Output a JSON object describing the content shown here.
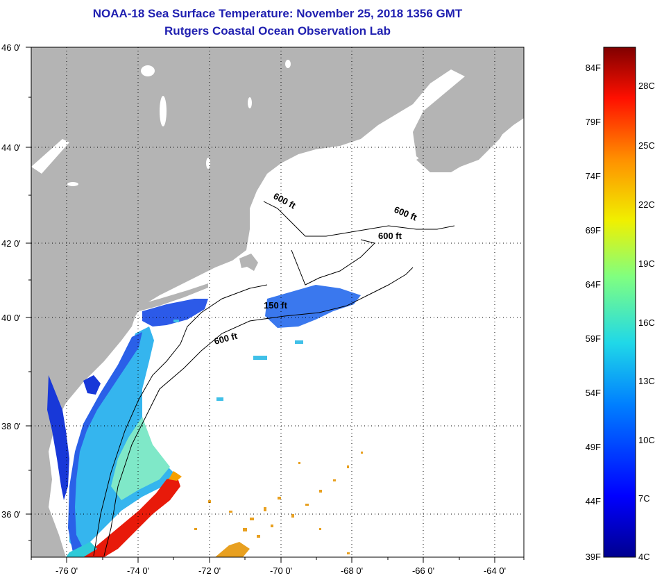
{
  "header": {
    "title": "NOAA-18 Sea Surface Temperature:  November 25, 2018 1356 GMT",
    "subtitle": "Rutgers Coastal Ocean Observation Lab"
  },
  "map": {
    "lon_range": [
      -77,
      -63
    ],
    "lat_range": [
      35,
      46
    ],
    "lon_ticks": [
      {
        "value": -76,
        "label": "-76 0'"
      },
      {
        "value": -74,
        "label": "-74 0'"
      },
      {
        "value": -72,
        "label": "-72 0'"
      },
      {
        "value": -70,
        "label": "-70 0'"
      },
      {
        "value": -68,
        "label": "-68 0'"
      },
      {
        "value": -66,
        "label": "-66 0'"
      },
      {
        "value": -64,
        "label": "-64 0'"
      }
    ],
    "lat_ticks": [
      {
        "value": 46,
        "label": "46 0'"
      },
      {
        "value": 44,
        "label": "44 0'"
      },
      {
        "value": 42,
        "label": "42 0'"
      },
      {
        "value": 40,
        "label": "40 0'"
      },
      {
        "value": 38,
        "label": "38 0'"
      },
      {
        "value": 36,
        "label": "36 0'"
      }
    ],
    "contour_labels": [
      "600 ft",
      "600 ft",
      "600 ft",
      "150 ft",
      "600 ft"
    ],
    "colors": {
      "land": "#b4b4b4",
      "ocean_nodata": "#ffffff",
      "cold": "#1a3fe0",
      "cool": "#2fb8f0",
      "mild": "#7ff0c0",
      "warm": "#ffcc00",
      "hot": "#e81a0a"
    }
  },
  "colorbar": {
    "fahrenheit": [
      "84F",
      "79F",
      "74F",
      "69F",
      "64F",
      "59F",
      "54F",
      "49F",
      "44F",
      "39F"
    ],
    "celsius": [
      "28C",
      "25C",
      "22C",
      "19C",
      "16C",
      "13C",
      "10C",
      "7C",
      "4C"
    ]
  }
}
